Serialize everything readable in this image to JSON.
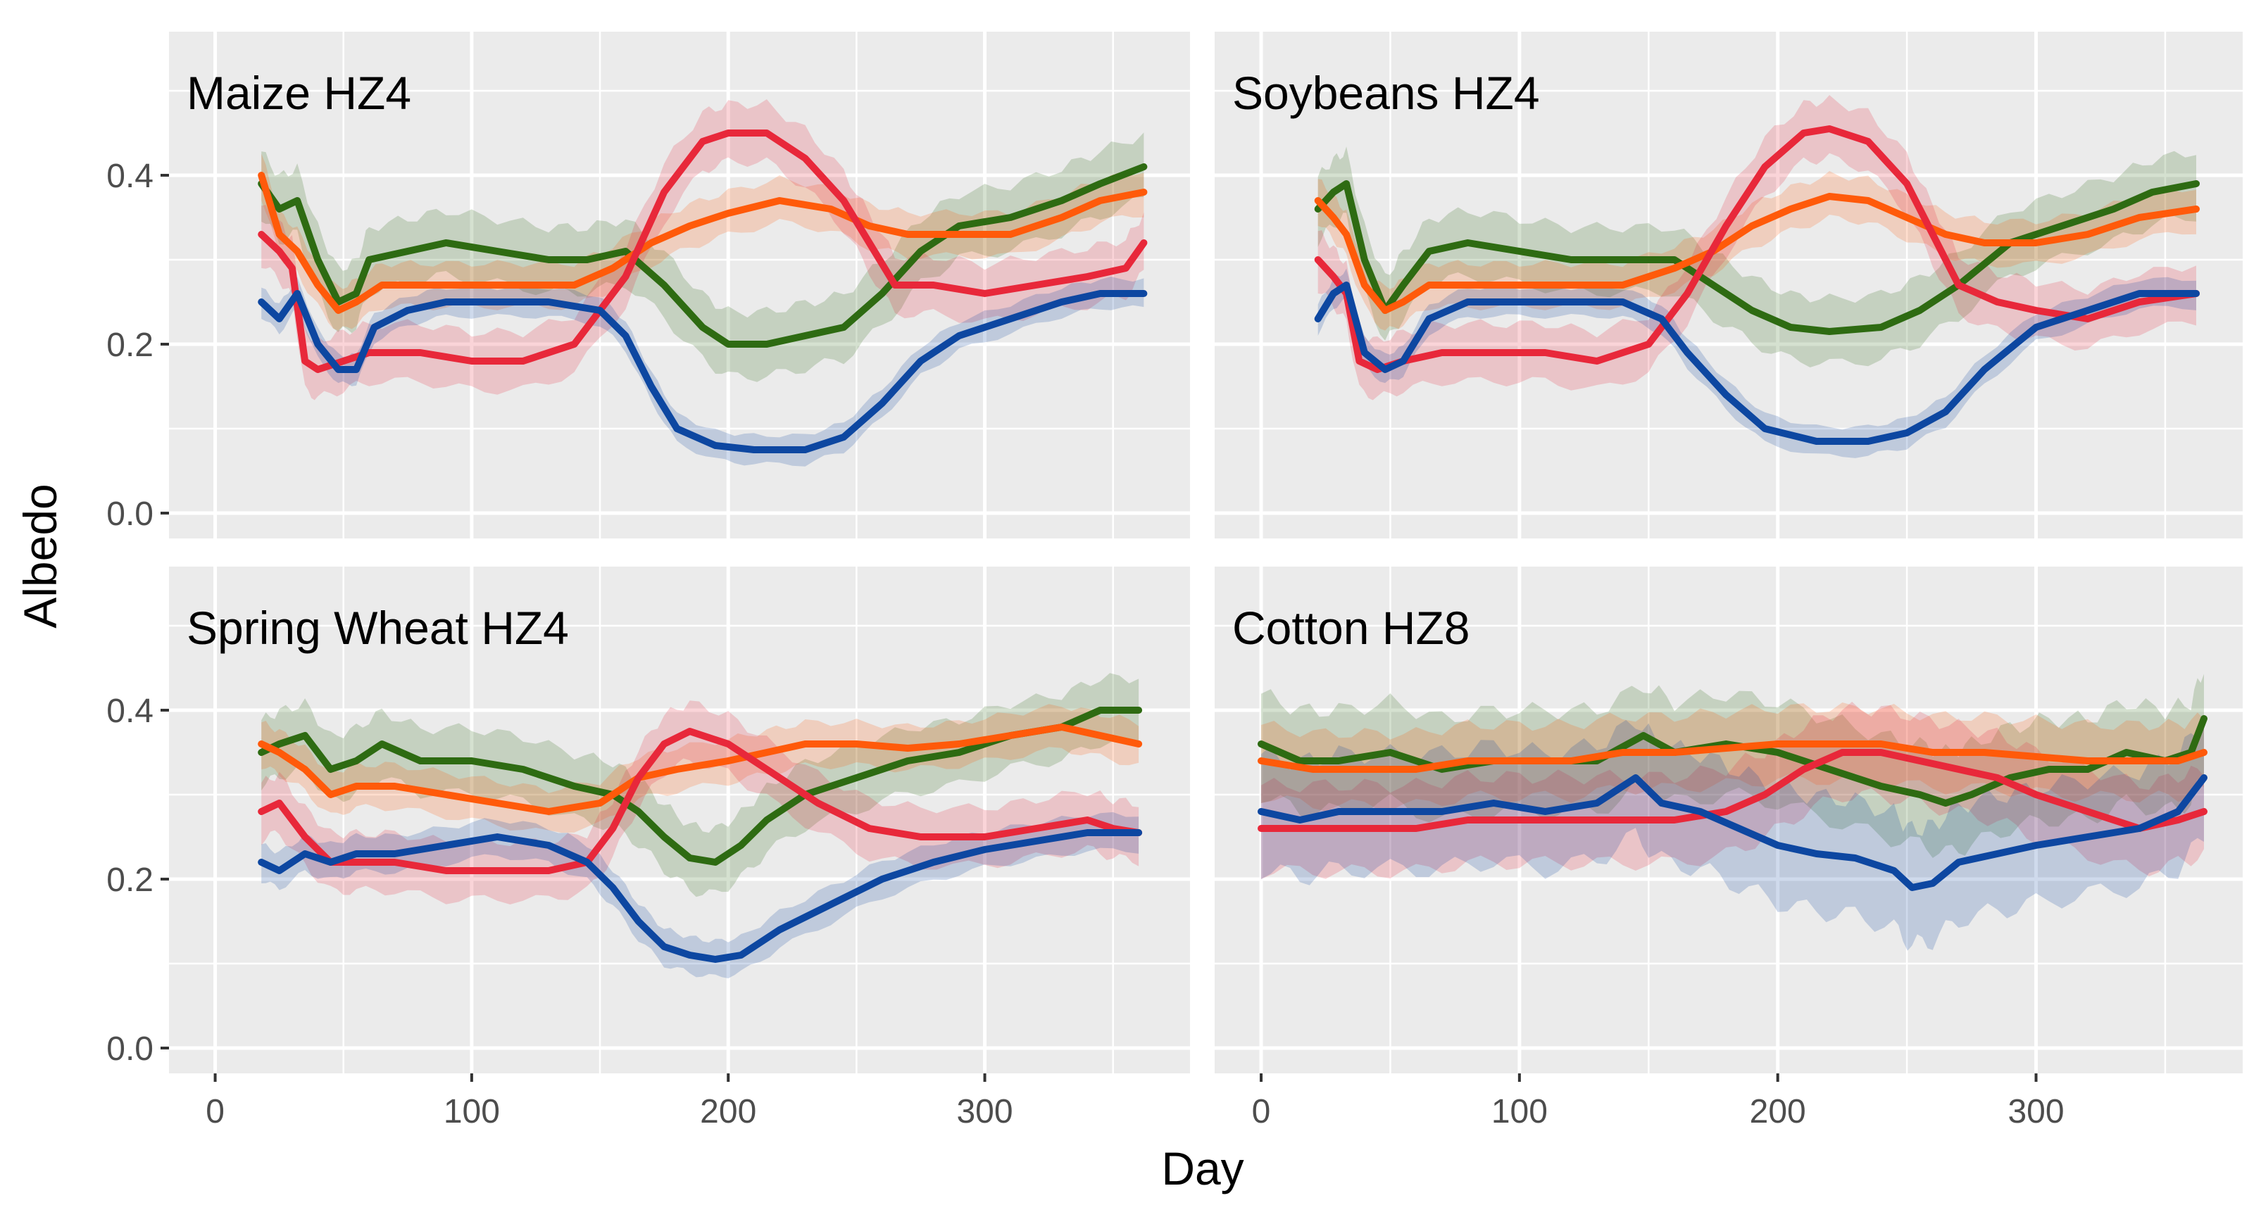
{
  "chart_data": {
    "type": "line",
    "xlabel": "Day",
    "ylabel": "Albedo",
    "xlim": [
      -18,
      380
    ],
    "ylim": [
      -0.03,
      0.57
    ],
    "x_ticks": [
      0,
      100,
      200,
      300
    ],
    "x_tick_labels": [
      "0",
      "100",
      "200",
      "300"
    ],
    "y_ticks": [
      0.0,
      0.2,
      0.4
    ],
    "y_tick_labels": [
      "0.0",
      "0.2",
      "0.4"
    ],
    "grid": true,
    "legend": "none",
    "colors": {
      "red": "#e8283a",
      "orange": "#ff5a0a",
      "green": "#2e6b12",
      "blue": "#0d47a1"
    },
    "panels": [
      {
        "title": "Maize HZ4",
        "series": [
          {
            "name": "green",
            "color": "#2e6b12",
            "x": [
              18,
              25,
              32,
              40,
              48,
              55,
              60,
              75,
              90,
              110,
              130,
              145,
              160,
              175,
              190,
              200,
              215,
              230,
              245,
              260,
              275,
              290,
              310,
              330,
              345,
              362
            ],
            "y": [
              0.39,
              0.36,
              0.37,
              0.3,
              0.25,
              0.26,
              0.3,
              0.31,
              0.32,
              0.31,
              0.3,
              0.3,
              0.31,
              0.27,
              0.22,
              0.2,
              0.2,
              0.21,
              0.22,
              0.26,
              0.31,
              0.34,
              0.35,
              0.37,
              0.39,
              0.41
            ],
            "band": 0.045
          },
          {
            "name": "orange",
            "color": "#ff5a0a",
            "x": [
              18,
              25,
              32,
              40,
              48,
              55,
              65,
              80,
              100,
              120,
              140,
              155,
              170,
              185,
              200,
              220,
              240,
              255,
              270,
              290,
              310,
              330,
              345,
              362
            ],
            "y": [
              0.4,
              0.33,
              0.31,
              0.27,
              0.24,
              0.25,
              0.27,
              0.27,
              0.27,
              0.27,
              0.27,
              0.29,
              0.32,
              0.34,
              0.355,
              0.37,
              0.36,
              0.34,
              0.33,
              0.33,
              0.33,
              0.35,
              0.37,
              0.38
            ],
            "band": 0.03
          },
          {
            "name": "red",
            "color": "#e8283a",
            "x": [
              18,
              25,
              30,
              35,
              40,
              50,
              60,
              80,
              100,
              120,
              140,
              160,
              175,
              190,
              200,
              215,
              230,
              245,
              255,
              265,
              280,
              300,
              320,
              340,
              355,
              362
            ],
            "y": [
              0.33,
              0.31,
              0.29,
              0.18,
              0.17,
              0.18,
              0.19,
              0.19,
              0.18,
              0.18,
              0.2,
              0.28,
              0.38,
              0.44,
              0.45,
              0.45,
              0.42,
              0.37,
              0.32,
              0.27,
              0.27,
              0.26,
              0.27,
              0.28,
              0.29,
              0.32
            ],
            "band": 0.04
          },
          {
            "name": "blue",
            "color": "#0d47a1",
            "x": [
              18,
              25,
              32,
              40,
              48,
              55,
              62,
              75,
              90,
              110,
              130,
              150,
              160,
              170,
              180,
              195,
              210,
              230,
              245,
              260,
              275,
              290,
              310,
              330,
              345,
              362
            ],
            "y": [
              0.25,
              0.23,
              0.26,
              0.2,
              0.17,
              0.17,
              0.22,
              0.24,
              0.25,
              0.25,
              0.25,
              0.24,
              0.21,
              0.15,
              0.1,
              0.08,
              0.075,
              0.075,
              0.09,
              0.13,
              0.18,
              0.21,
              0.23,
              0.25,
              0.26,
              0.26
            ],
            "band": 0.02
          }
        ]
      },
      {
        "title": "Soybeans HZ4",
        "series": [
          {
            "name": "green",
            "color": "#2e6b12",
            "x": [
              22,
              28,
              33,
              40,
              48,
              55,
              65,
              80,
              100,
              120,
              140,
              160,
              175,
              190,
              205,
              220,
              240,
              255,
              270,
              290,
              310,
              330,
              345,
              362
            ],
            "y": [
              0.36,
              0.38,
              0.39,
              0.3,
              0.24,
              0.27,
              0.31,
              0.32,
              0.31,
              0.3,
              0.3,
              0.3,
              0.27,
              0.24,
              0.22,
              0.215,
              0.22,
              0.24,
              0.27,
              0.32,
              0.34,
              0.36,
              0.38,
              0.39
            ],
            "band": 0.045
          },
          {
            "name": "orange",
            "color": "#ff5a0a",
            "x": [
              22,
              28,
              33,
              40,
              48,
              55,
              65,
              80,
              100,
              120,
              140,
              160,
              175,
              190,
              205,
              220,
              235,
              250,
              265,
              280,
              300,
              320,
              340,
              362
            ],
            "y": [
              0.37,
              0.35,
              0.33,
              0.27,
              0.24,
              0.25,
              0.27,
              0.27,
              0.27,
              0.27,
              0.27,
              0.29,
              0.31,
              0.34,
              0.36,
              0.375,
              0.37,
              0.35,
              0.33,
              0.32,
              0.32,
              0.33,
              0.35,
              0.36
            ],
            "band": 0.03
          },
          {
            "name": "red",
            "color": "#e8283a",
            "x": [
              22,
              28,
              33,
              38,
              45,
              55,
              70,
              90,
              110,
              130,
              150,
              165,
              180,
              195,
              210,
              220,
              235,
              250,
              260,
              270,
              285,
              300,
              320,
              340,
              362
            ],
            "y": [
              0.3,
              0.28,
              0.26,
              0.18,
              0.17,
              0.18,
              0.19,
              0.19,
              0.19,
              0.18,
              0.2,
              0.26,
              0.34,
              0.41,
              0.45,
              0.455,
              0.44,
              0.39,
              0.33,
              0.27,
              0.25,
              0.24,
              0.23,
              0.25,
              0.26
            ],
            "band": 0.04
          },
          {
            "name": "blue",
            "color": "#0d47a1",
            "x": [
              22,
              28,
              33,
              40,
              48,
              55,
              65,
              80,
              100,
              120,
              140,
              155,
              165,
              180,
              195,
              215,
              235,
              250,
              265,
              280,
              300,
              320,
              340,
              362
            ],
            "y": [
              0.23,
              0.26,
              0.27,
              0.19,
              0.17,
              0.18,
              0.23,
              0.25,
              0.25,
              0.25,
              0.25,
              0.23,
              0.19,
              0.14,
              0.1,
              0.085,
              0.085,
              0.095,
              0.12,
              0.17,
              0.22,
              0.24,
              0.26,
              0.26
            ],
            "band": 0.02
          }
        ]
      },
      {
        "title": "Spring Wheat HZ4",
        "series": [
          {
            "name": "green",
            "color": "#2e6b12",
            "x": [
              18,
              25,
              35,
              45,
              55,
              65,
              80,
              100,
              120,
              140,
              155,
              165,
              175,
              185,
              195,
              205,
              215,
              230,
              250,
              270,
              290,
              310,
              330,
              345,
              360
            ],
            "y": [
              0.35,
              0.36,
              0.37,
              0.33,
              0.34,
              0.36,
              0.34,
              0.34,
              0.33,
              0.31,
              0.3,
              0.28,
              0.25,
              0.225,
              0.22,
              0.24,
              0.27,
              0.3,
              0.32,
              0.34,
              0.35,
              0.37,
              0.38,
              0.4,
              0.4
            ],
            "band": 0.045
          },
          {
            "name": "orange",
            "color": "#ff5a0a",
            "x": [
              18,
              25,
              35,
              45,
              55,
              70,
              90,
              110,
              130,
              150,
              165,
              180,
              200,
              215,
              230,
              250,
              270,
              290,
              310,
              330,
              345,
              360
            ],
            "y": [
              0.36,
              0.35,
              0.33,
              0.3,
              0.31,
              0.31,
              0.3,
              0.29,
              0.28,
              0.29,
              0.32,
              0.33,
              0.34,
              0.35,
              0.36,
              0.36,
              0.355,
              0.36,
              0.37,
              0.38,
              0.37,
              0.36
            ],
            "band": 0.03
          },
          {
            "name": "red",
            "color": "#e8283a",
            "x": [
              18,
              25,
              35,
              45,
              55,
              70,
              90,
              110,
              130,
              145,
              155,
              165,
              175,
              185,
              200,
              215,
              235,
              255,
              275,
              300,
              320,
              340,
              350,
              360
            ],
            "y": [
              0.28,
              0.29,
              0.25,
              0.22,
              0.22,
              0.22,
              0.21,
              0.21,
              0.21,
              0.22,
              0.26,
              0.32,
              0.36,
              0.375,
              0.36,
              0.33,
              0.29,
              0.26,
              0.25,
              0.25,
              0.26,
              0.27,
              0.26,
              0.255
            ],
            "band": 0.04
          },
          {
            "name": "blue",
            "color": "#0d47a1",
            "x": [
              18,
              25,
              35,
              45,
              55,
              70,
              90,
              110,
              130,
              145,
              155,
              165,
              175,
              185,
              195,
              205,
              220,
              240,
              260,
              280,
              300,
              320,
              340,
              360
            ],
            "y": [
              0.22,
              0.21,
              0.23,
              0.22,
              0.23,
              0.23,
              0.24,
              0.25,
              0.24,
              0.22,
              0.19,
              0.15,
              0.12,
              0.11,
              0.105,
              0.11,
              0.14,
              0.17,
              0.2,
              0.22,
              0.235,
              0.245,
              0.255,
              0.255
            ],
            "band": 0.025
          }
        ]
      },
      {
        "title": "Cotton HZ8",
        "series": [
          {
            "name": "green",
            "color": "#2e6b12",
            "x": [
              0,
              15,
              30,
              50,
              70,
              90,
              110,
              130,
              148,
              160,
              180,
              200,
              220,
              240,
              255,
              265,
              275,
              290,
              305,
              320,
              335,
              350,
              360,
              365
            ],
            "y": [
              0.36,
              0.34,
              0.34,
              0.35,
              0.33,
              0.34,
              0.34,
              0.34,
              0.37,
              0.35,
              0.36,
              0.35,
              0.33,
              0.31,
              0.3,
              0.29,
              0.3,
              0.32,
              0.33,
              0.33,
              0.35,
              0.34,
              0.35,
              0.39
            ],
            "band": 0.07
          },
          {
            "name": "orange",
            "color": "#ff5a0a",
            "x": [
              0,
              20,
              40,
              60,
              80,
              100,
              120,
              140,
              160,
              180,
              200,
              220,
              240,
              260,
              280,
              300,
              320,
              340,
              355,
              365
            ],
            "y": [
              0.34,
              0.33,
              0.33,
              0.33,
              0.34,
              0.34,
              0.34,
              0.35,
              0.35,
              0.355,
              0.36,
              0.36,
              0.36,
              0.35,
              0.35,
              0.345,
              0.34,
              0.34,
              0.34,
              0.35
            ],
            "band": 0.05
          },
          {
            "name": "red",
            "color": "#e8283a",
            "x": [
              0,
              20,
              40,
              60,
              80,
              100,
              120,
              140,
              160,
              180,
              195,
              210,
              225,
              240,
              255,
              270,
              285,
              300,
              320,
              340,
              355,
              365
            ],
            "y": [
              0.26,
              0.26,
              0.26,
              0.26,
              0.27,
              0.27,
              0.27,
              0.27,
              0.27,
              0.28,
              0.3,
              0.33,
              0.35,
              0.35,
              0.34,
              0.33,
              0.32,
              0.3,
              0.28,
              0.26,
              0.27,
              0.28
            ],
            "band": 0.06
          },
          {
            "name": "blue",
            "color": "#0d47a1",
            "x": [
              0,
              15,
              30,
              50,
              70,
              90,
              110,
              130,
              145,
              155,
              170,
              185,
              200,
              215,
              230,
              245,
              252,
              260,
              270,
              285,
              300,
              320,
              340,
              355,
              365
            ],
            "y": [
              0.28,
              0.27,
              0.28,
              0.28,
              0.28,
              0.29,
              0.28,
              0.29,
              0.32,
              0.29,
              0.28,
              0.26,
              0.24,
              0.23,
              0.225,
              0.21,
              0.19,
              0.195,
              0.22,
              0.23,
              0.24,
              0.25,
              0.26,
              0.28,
              0.32
            ],
            "band": 0.08
          }
        ]
      }
    ]
  }
}
